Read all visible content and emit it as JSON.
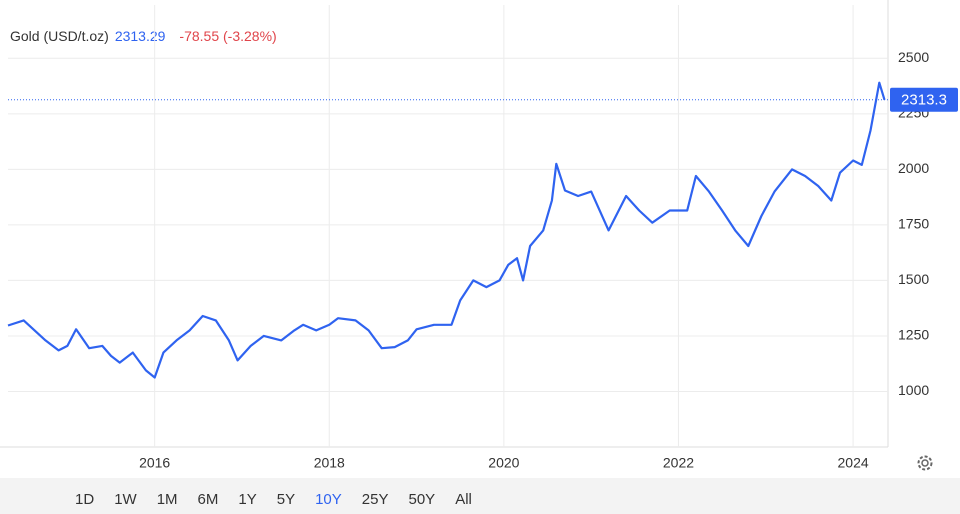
{
  "chart_data": {
    "type": "line",
    "title": "Gold (USD/t.oz)",
    "change": "-78.55 (-3.28%)",
    "series": [
      {
        "name": "Gold",
        "color": "#2f63f0",
        "x": [
          2014.32,
          2014.5,
          2014.75,
          2014.9,
          2015.0,
          2015.1,
          2015.25,
          2015.4,
          2015.5,
          2015.6,
          2015.75,
          2015.9,
          2016.0,
          2016.1,
          2016.25,
          2016.4,
          2016.55,
          2016.7,
          2016.85,
          2016.95,
          2017.1,
          2017.25,
          2017.45,
          2017.6,
          2017.7,
          2017.85,
          2018.0,
          2018.1,
          2018.3,
          2018.45,
          2018.6,
          2018.75,
          2018.9,
          2019.0,
          2019.2,
          2019.4,
          2019.5,
          2019.65,
          2019.8,
          2019.95,
          2020.05,
          2020.15,
          2020.22,
          2020.3,
          2020.45,
          2020.55,
          2020.6,
          2020.7,
          2020.85,
          2021.0,
          2021.2,
          2021.4,
          2021.55,
          2021.7,
          2021.9,
          2022.1,
          2022.2,
          2022.35,
          2022.5,
          2022.65,
          2022.8,
          2022.95,
          2023.1,
          2023.3,
          2023.45,
          2023.6,
          2023.75,
          2023.85,
          2024.0,
          2024.1,
          2024.2,
          2024.3,
          2024.36
        ],
        "values": [
          1297,
          1320,
          1230,
          1185,
          1205,
          1280,
          1195,
          1205,
          1160,
          1130,
          1175,
          1095,
          1063,
          1175,
          1230,
          1275,
          1340,
          1320,
          1230,
          1140,
          1205,
          1250,
          1230,
          1275,
          1300,
          1275,
          1300,
          1330,
          1320,
          1275,
          1195,
          1200,
          1230,
          1280,
          1300,
          1300,
          1410,
          1500,
          1470,
          1500,
          1570,
          1600,
          1500,
          1655,
          1725,
          1860,
          2025,
          1905,
          1880,
          1900,
          1725,
          1880,
          1815,
          1760,
          1815,
          1815,
          1970,
          1900,
          1815,
          1725,
          1655,
          1790,
          1900,
          2000,
          1970,
          1925,
          1860,
          1985,
          2040,
          2020,
          2175,
          2390,
          2313.29
        ],
        "last_label": "2313.3"
      }
    ],
    "xlim": [
      2014.32,
      2024.4
    ],
    "xticks": [
      2016,
      2018,
      2020,
      2022,
      2024
    ],
    "ylim": [
      750,
      2740
    ],
    "yticks": [
      1000,
      1250,
      1500,
      1750,
      2000,
      2250,
      2500
    ],
    "grid": true,
    "ranges": [
      "1D",
      "1W",
      "1M",
      "6M",
      "1Y",
      "5Y",
      "10Y",
      "25Y",
      "50Y",
      "All"
    ],
    "active_range": "10Y"
  }
}
